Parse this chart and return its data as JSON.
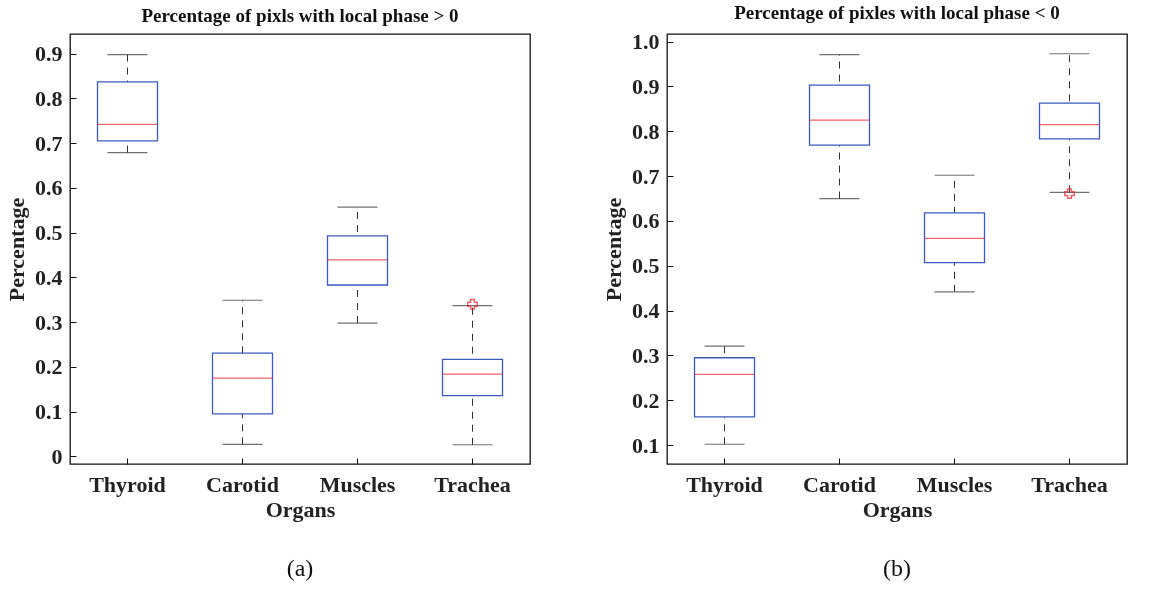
{
  "chart_data": [
    {
      "type": "box",
      "title": "Percentage of pixls with local phase > 0",
      "xlabel": "Organs",
      "ylabel": "Percentage",
      "categories": [
        "Thyroid",
        "Carotid",
        "Muscles",
        "Trachea"
      ],
      "series": [
        {
          "color": "#3b5bbf",
          "boxes": [
            {
              "low": 0.679,
              "q1": 0.705,
              "median": 0.742,
              "q3": 0.837,
              "high": 0.898
            },
            {
              "low": 0.027,
              "q1": 0.095,
              "median": 0.175,
              "q3": 0.231,
              "high": 0.349
            },
            {
              "low": 0.298,
              "q1": 0.383,
              "median": 0.439,
              "q3": 0.493,
              "high": 0.557
            },
            {
              "low": 0.026,
              "q1": 0.136,
              "median": 0.184,
              "q3": 0.217,
              "high": 0.337,
              "outliers": [
                0.34
              ]
            }
          ]
        }
      ],
      "ylim": [
        -0.017,
        0.944
      ],
      "yticks": [
        {
          "value": 0,
          "label": "0"
        },
        0.1,
        0.2,
        0.3,
        0.4,
        0.5,
        0.6,
        0.7,
        0.8,
        0.9
      ],
      "grid": false,
      "annotations": [
        "(a)"
      ]
    },
    {
      "type": "box",
      "title": "Percentage of pixles with local phase < 0",
      "xlabel": "Organs",
      "ylabel": "Percentage",
      "categories": [
        "Thyroid",
        "Carotid",
        "Muscles",
        "Trachea"
      ],
      "series": [
        {
          "color": "#3b5bbf",
          "boxes": [
            {
              "low": 0.102,
              "q1": 0.163,
              "median": 0.258,
              "q3": 0.295,
              "high": 0.321
            },
            {
              "low": 0.65,
              "q1": 0.769,
              "median": 0.825,
              "q3": 0.903,
              "high": 0.971
            },
            {
              "low": 0.442,
              "q1": 0.507,
              "median": 0.561,
              "q3": 0.618,
              "high": 0.702
            },
            {
              "low": 0.664,
              "q1": 0.783,
              "median": 0.815,
              "q3": 0.863,
              "high": 0.973,
              "outliers": [
                0.661
              ]
            }
          ]
        }
      ],
      "ylim": [
        0.058,
        1.017
      ],
      "yticks": [
        0.1,
        0.2,
        0.3,
        0.4,
        0.5,
        0.6,
        0.7,
        0.8,
        0.9,
        {
          "value": 1,
          "label": "1.0"
        }
      ],
      "grid": false,
      "annotations": [
        "(b)"
      ]
    }
  ]
}
